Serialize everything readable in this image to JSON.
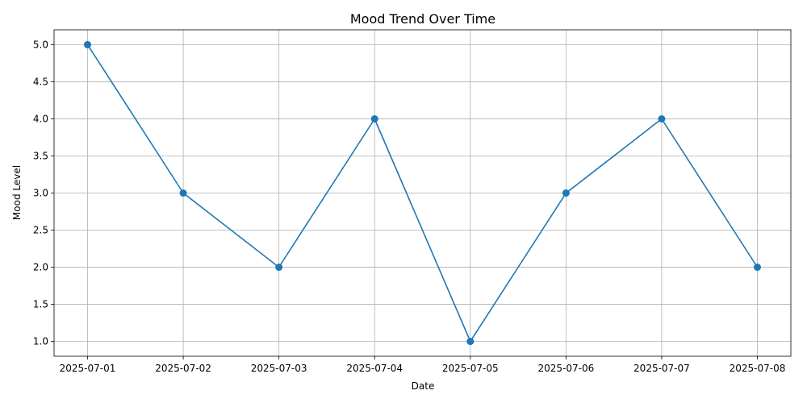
{
  "chart_data": {
    "type": "line",
    "title": "Mood Trend Over Time",
    "xlabel": "Date",
    "ylabel": "Mood Level",
    "categories": [
      "2025-07-01",
      "2025-07-02",
      "2025-07-03",
      "2025-07-04",
      "2025-07-05",
      "2025-07-06",
      "2025-07-07",
      "2025-07-08"
    ],
    "series": [
      {
        "values": [
          5,
          3,
          2,
          4,
          1,
          3,
          4,
          2
        ],
        "color": "#1f77b4",
        "marker": "circle"
      }
    ],
    "ylim": [
      0.8,
      5.2
    ],
    "yticks": [
      "1.0",
      "1.5",
      "2.0",
      "2.5",
      "3.0",
      "3.5",
      "4.0",
      "4.5",
      "5.0"
    ],
    "grid": true,
    "legend": "none"
  }
}
